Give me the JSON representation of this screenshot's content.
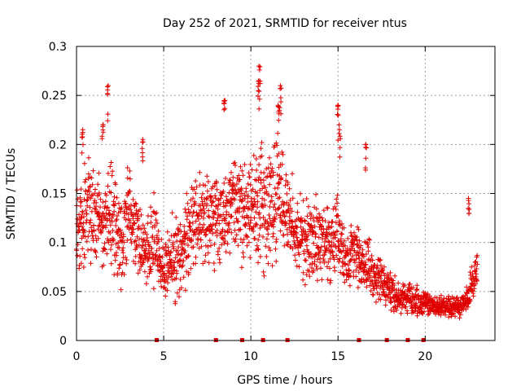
{
  "colors": {
    "series": "#e00000",
    "grid": "#a0a0a0",
    "axis": "#000000"
  },
  "chart_data": {
    "type": "scatter",
    "title": "Day 252 of 2021, SRMTID for receiver ntus",
    "xlabel": "GPS time / hours",
    "ylabel": "SRMTID / TECUs",
    "xlim": [
      0,
      24
    ],
    "ylim": [
      0,
      0.3
    ],
    "x_ticks": [
      0,
      5,
      10,
      15,
      20
    ],
    "x_tick_labels": [
      "0",
      "5",
      "10",
      "15",
      "20"
    ],
    "y_ticks": [
      0,
      0.05,
      0.1,
      0.15,
      0.2,
      0.25,
      0.3
    ],
    "y_tick_labels": [
      "0",
      "0.05",
      "0.1",
      "0.15",
      "0.2",
      "0.25",
      "0.3"
    ],
    "grid": true,
    "marker": "plus",
    "series": [
      {
        "name": "SRMTID",
        "envelope_hours": [
          0,
          0.5,
          1,
          1.5,
          2,
          2.5,
          3,
          3.5,
          4,
          4.5,
          5,
          5.5,
          6,
          6.5,
          7,
          7.5,
          8,
          8.5,
          9,
          9.5,
          10,
          10.5,
          11,
          11.5,
          12,
          12.5,
          13,
          13.5,
          14,
          14.5,
          15,
          15.5,
          16,
          16.5,
          17,
          17.5,
          18,
          18.5,
          19,
          19.5,
          20,
          20.5,
          21,
          21.5,
          22,
          22.5,
          23
        ],
        "envelope_center": [
          0.11,
          0.13,
          0.13,
          0.12,
          0.13,
          0.1,
          0.13,
          0.11,
          0.09,
          0.1,
          0.07,
          0.08,
          0.09,
          0.12,
          0.13,
          0.12,
          0.13,
          0.12,
          0.14,
          0.12,
          0.13,
          0.14,
          0.13,
          0.15,
          0.14,
          0.11,
          0.1,
          0.11,
          0.1,
          0.1,
          0.11,
          0.08,
          0.09,
          0.08,
          0.07,
          0.06,
          0.05,
          0.045,
          0.045,
          0.04,
          0.04,
          0.035,
          0.035,
          0.035,
          0.035,
          0.045,
          0.08
        ],
        "envelope_spread": [
          0.05,
          0.05,
          0.05,
          0.04,
          0.05,
          0.05,
          0.05,
          0.04,
          0.04,
          0.05,
          0.03,
          0.04,
          0.04,
          0.05,
          0.05,
          0.05,
          0.05,
          0.05,
          0.05,
          0.05,
          0.05,
          0.06,
          0.06,
          0.06,
          0.05,
          0.04,
          0.04,
          0.04,
          0.04,
          0.04,
          0.04,
          0.03,
          0.03,
          0.03,
          0.025,
          0.02,
          0.02,
          0.015,
          0.015,
          0.015,
          0.012,
          0.01,
          0.01,
          0.01,
          0.01,
          0.015,
          0.02
        ],
        "peaks": [
          {
            "x": 1.8,
            "y": 0.26
          },
          {
            "x": 1.5,
            "y": 0.22
          },
          {
            "x": 0.35,
            "y": 0.215
          },
          {
            "x": 3.8,
            "y": 0.205
          },
          {
            "x": 8.5,
            "y": 0.245
          },
          {
            "x": 10.5,
            "y": 0.28
          },
          {
            "x": 10.45,
            "y": 0.265
          },
          {
            "x": 11.7,
            "y": 0.26
          },
          {
            "x": 11.6,
            "y": 0.24
          },
          {
            "x": 15.0,
            "y": 0.24
          },
          {
            "x": 15.1,
            "y": 0.22
          },
          {
            "x": 16.6,
            "y": 0.2
          },
          {
            "x": 22.5,
            "y": 0.145
          }
        ],
        "data_gap_markers_hours": [
          4.6,
          8.0,
          9.5,
          10.7,
          12.1,
          16.2,
          17.8,
          19.0,
          19.9
        ]
      }
    ]
  }
}
